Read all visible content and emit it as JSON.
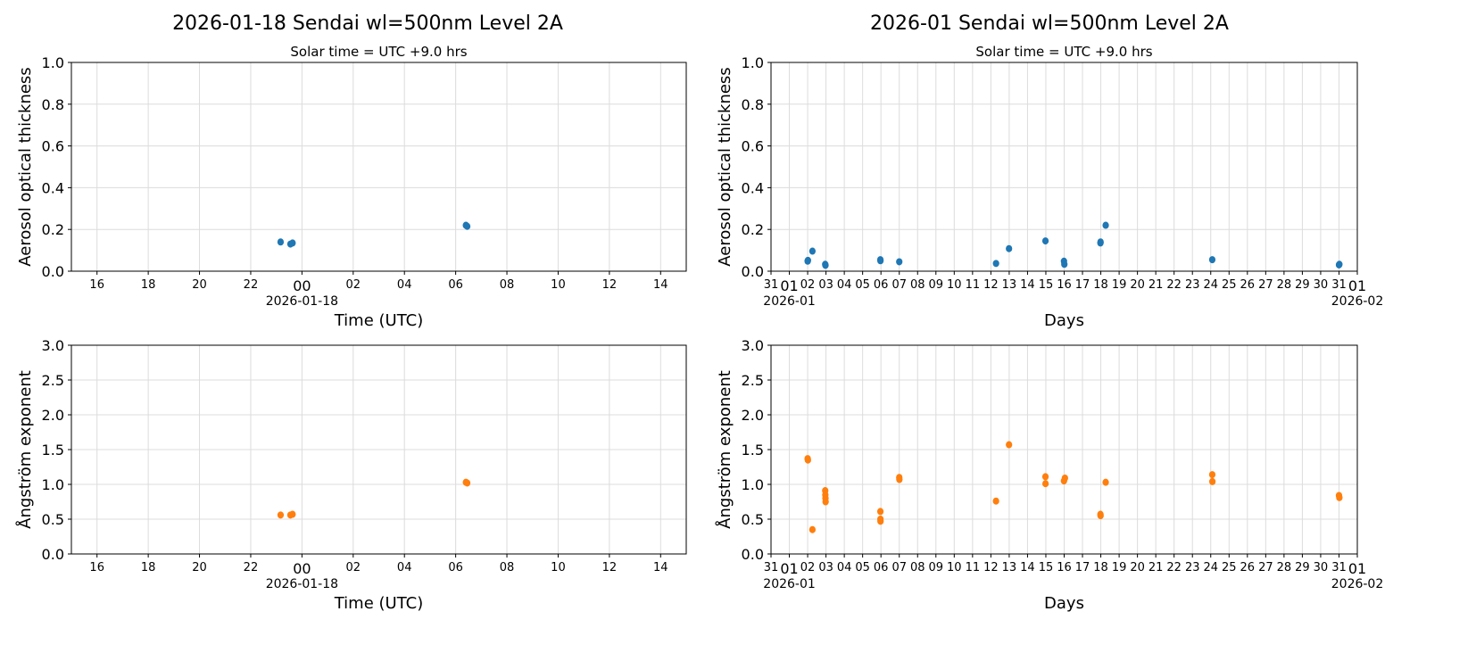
{
  "colors": {
    "aot": "#1f77b4",
    "angstrom": "#ff7f0e",
    "grid": "#dcdcdc"
  },
  "columns": [
    {
      "suptitle": "2026-01-18  Sendai  wl=500nm  Level 2A"
    },
    {
      "suptitle": "2026-01  Sendai  wl=500nm  Level 2A"
    }
  ],
  "chart_data": [
    {
      "type": "scatter",
      "subtitle": "Solar time = UTC +9.0 hrs",
      "xlabel": "Time (UTC)",
      "ylabel": "Aerosol optical thickness",
      "xlim": [
        "2026-01-17T15:00",
        "2026-01-18T15:00"
      ],
      "ylim": [
        0,
        1.0
      ],
      "yticks": [
        "0.0",
        "0.2",
        "0.4",
        "0.6",
        "0.8",
        "1.0"
      ],
      "grid": true,
      "color": "#1f77b4",
      "xticks": [
        {
          "t": "2026-01-17T16:00",
          "label": "16"
        },
        {
          "t": "2026-01-17T18:00",
          "label": "18"
        },
        {
          "t": "2026-01-17T20:00",
          "label": "20"
        },
        {
          "t": "2026-01-17T22:00",
          "label": "22"
        },
        {
          "t": "2026-01-18T00:00",
          "label": "00",
          "sub": "2026-01-18"
        },
        {
          "t": "2026-01-18T02:00",
          "label": "02"
        },
        {
          "t": "2026-01-18T04:00",
          "label": "04"
        },
        {
          "t": "2026-01-18T06:00",
          "label": "06"
        },
        {
          "t": "2026-01-18T08:00",
          "label": "08"
        },
        {
          "t": "2026-01-18T10:00",
          "label": "10"
        },
        {
          "t": "2026-01-18T12:00",
          "label": "12"
        },
        {
          "t": "2026-01-18T14:00",
          "label": "14"
        }
      ],
      "points": [
        [
          "2026-01-17T23:10",
          0.14
        ],
        [
          "2026-01-17T23:33",
          0.13
        ],
        [
          "2026-01-17T23:38",
          0.135
        ],
        [
          "2026-01-18T06:24",
          0.22
        ],
        [
          "2026-01-18T06:27",
          0.215
        ]
      ]
    },
    {
      "type": "scatter",
      "subtitle": "Solar time = UTC +9.0 hrs",
      "xlabel": "Days",
      "ylabel": "Aerosol optical thickness",
      "xlim": [
        "2025-12-31T00:00",
        "2026-02-01T00:00"
      ],
      "ylim": [
        0,
        1.0
      ],
      "yticks": [
        "0.0",
        "0.2",
        "0.4",
        "0.6",
        "0.8",
        "1.0"
      ],
      "grid": true,
      "color": "#1f77b4",
      "xticks": [
        {
          "t": "2025-12-31",
          "label": "31"
        },
        {
          "t": "2026-01-01",
          "label": "01",
          "sub": "2026-01"
        },
        {
          "t": "2026-01-02",
          "label": "02"
        },
        {
          "t": "2026-01-03",
          "label": "03"
        },
        {
          "t": "2026-01-04",
          "label": "04"
        },
        {
          "t": "2026-01-05",
          "label": "05"
        },
        {
          "t": "2026-01-06",
          "label": "06"
        },
        {
          "t": "2026-01-07",
          "label": "07"
        },
        {
          "t": "2026-01-08",
          "label": "08"
        },
        {
          "t": "2026-01-09",
          "label": "09"
        },
        {
          "t": "2026-01-10",
          "label": "10"
        },
        {
          "t": "2026-01-11",
          "label": "11"
        },
        {
          "t": "2026-01-12",
          "label": "12"
        },
        {
          "t": "2026-01-13",
          "label": "13"
        },
        {
          "t": "2026-01-14",
          "label": "14"
        },
        {
          "t": "2026-01-15",
          "label": "15"
        },
        {
          "t": "2026-01-16",
          "label": "16"
        },
        {
          "t": "2026-01-17",
          "label": "17"
        },
        {
          "t": "2026-01-18",
          "label": "18"
        },
        {
          "t": "2026-01-19",
          "label": "19"
        },
        {
          "t": "2026-01-20",
          "label": "20"
        },
        {
          "t": "2026-01-21",
          "label": "21"
        },
        {
          "t": "2026-01-22",
          "label": "22"
        },
        {
          "t": "2026-01-23",
          "label": "23"
        },
        {
          "t": "2026-01-24",
          "label": "24"
        },
        {
          "t": "2026-01-25",
          "label": "25"
        },
        {
          "t": "2026-01-26",
          "label": "26"
        },
        {
          "t": "2026-01-27",
          "label": "27"
        },
        {
          "t": "2026-01-28",
          "label": "28"
        },
        {
          "t": "2026-01-29",
          "label": "29"
        },
        {
          "t": "2026-01-30",
          "label": "30"
        },
        {
          "t": "2026-01-31",
          "label": "31"
        },
        {
          "t": "2026-02-01",
          "label": "01",
          "sub": "2026-02"
        }
      ],
      "points": [
        [
          "2026-01-02T00:00",
          0.048
        ],
        [
          "2026-01-02T00:20",
          0.052
        ],
        [
          "2026-01-02T06:15",
          0.096
        ],
        [
          "2026-01-02T23:00",
          0.033
        ],
        [
          "2026-01-02T23:20",
          0.028
        ],
        [
          "2026-01-05T23:15",
          0.055
        ],
        [
          "2026-01-05T23:20",
          0.05
        ],
        [
          "2026-01-07T00:00",
          0.045
        ],
        [
          "2026-01-12T06:45",
          0.037
        ],
        [
          "2026-01-12T23:45",
          0.108
        ],
        [
          "2026-01-14T23:30",
          0.145
        ],
        [
          "2026-01-15T23:45",
          0.048
        ],
        [
          "2026-01-16T00:15",
          0.033
        ],
        [
          "2026-01-17T23:30",
          0.135
        ],
        [
          "2026-01-17T23:40",
          0.14
        ],
        [
          "2026-01-18T06:25",
          0.22
        ],
        [
          "2026-01-24T02:00",
          0.055
        ],
        [
          "2026-01-31T00:00",
          0.03
        ],
        [
          "2026-01-31T00:30",
          0.033
        ]
      ]
    },
    {
      "type": "scatter",
      "xlabel": "Time (UTC)",
      "ylabel": "Ångström exponent",
      "xlim": [
        "2026-01-17T15:00",
        "2026-01-18T15:00"
      ],
      "ylim": [
        0,
        3.0
      ],
      "yticks": [
        "0.0",
        "0.5",
        "1.0",
        "1.5",
        "2.0",
        "2.5",
        "3.0"
      ],
      "grid": true,
      "color": "#ff7f0e",
      "xticks": [
        {
          "t": "2026-01-17T16:00",
          "label": "16"
        },
        {
          "t": "2026-01-17T18:00",
          "label": "18"
        },
        {
          "t": "2026-01-17T20:00",
          "label": "20"
        },
        {
          "t": "2026-01-17T22:00",
          "label": "22"
        },
        {
          "t": "2026-01-18T00:00",
          "label": "00",
          "sub": "2026-01-18"
        },
        {
          "t": "2026-01-18T02:00",
          "label": "02"
        },
        {
          "t": "2026-01-18T04:00",
          "label": "04"
        },
        {
          "t": "2026-01-18T06:00",
          "label": "06"
        },
        {
          "t": "2026-01-18T08:00",
          "label": "08"
        },
        {
          "t": "2026-01-18T10:00",
          "label": "10"
        },
        {
          "t": "2026-01-18T12:00",
          "label": "12"
        },
        {
          "t": "2026-01-18T14:00",
          "label": "14"
        }
      ],
      "points": [
        [
          "2026-01-17T23:10",
          0.56
        ],
        [
          "2026-01-17T23:33",
          0.56
        ],
        [
          "2026-01-17T23:38",
          0.57
        ],
        [
          "2026-01-18T06:24",
          1.03
        ],
        [
          "2026-01-18T06:27",
          1.02
        ]
      ]
    },
    {
      "type": "scatter",
      "xlabel": "Days",
      "ylabel": "Ångström exponent",
      "xlim": [
        "2025-12-31T00:00",
        "2026-02-01T00:00"
      ],
      "ylim": [
        0,
        3.0
      ],
      "yticks": [
        "0.0",
        "0.5",
        "1.0",
        "1.5",
        "2.0",
        "2.5",
        "3.0"
      ],
      "grid": true,
      "color": "#ff7f0e",
      "xticks": [
        {
          "t": "2025-12-31",
          "label": "31"
        },
        {
          "t": "2026-01-01",
          "label": "01",
          "sub": "2026-01"
        },
        {
          "t": "2026-01-02",
          "label": "02"
        },
        {
          "t": "2026-01-03",
          "label": "03"
        },
        {
          "t": "2026-01-04",
          "label": "04"
        },
        {
          "t": "2026-01-05",
          "label": "05"
        },
        {
          "t": "2026-01-06",
          "label": "06"
        },
        {
          "t": "2026-01-07",
          "label": "07"
        },
        {
          "t": "2026-01-08",
          "label": "08"
        },
        {
          "t": "2026-01-09",
          "label": "09"
        },
        {
          "t": "2026-01-10",
          "label": "10"
        },
        {
          "t": "2026-01-11",
          "label": "11"
        },
        {
          "t": "2026-01-12",
          "label": "12"
        },
        {
          "t": "2026-01-13",
          "label": "13"
        },
        {
          "t": "2026-01-14",
          "label": "14"
        },
        {
          "t": "2026-01-15",
          "label": "15"
        },
        {
          "t": "2026-01-16",
          "label": "16"
        },
        {
          "t": "2026-01-17",
          "label": "17"
        },
        {
          "t": "2026-01-18",
          "label": "18"
        },
        {
          "t": "2026-01-19",
          "label": "19"
        },
        {
          "t": "2026-01-20",
          "label": "20"
        },
        {
          "t": "2026-01-21",
          "label": "21"
        },
        {
          "t": "2026-01-22",
          "label": "22"
        },
        {
          "t": "2026-01-23",
          "label": "23"
        },
        {
          "t": "2026-01-24",
          "label": "24"
        },
        {
          "t": "2026-01-25",
          "label": "25"
        },
        {
          "t": "2026-01-26",
          "label": "26"
        },
        {
          "t": "2026-01-27",
          "label": "27"
        },
        {
          "t": "2026-01-28",
          "label": "28"
        },
        {
          "t": "2026-01-29",
          "label": "29"
        },
        {
          "t": "2026-01-30",
          "label": "30"
        },
        {
          "t": "2026-01-31",
          "label": "31"
        },
        {
          "t": "2026-02-01",
          "label": "01",
          "sub": "2026-02"
        }
      ],
      "points": [
        [
          "2026-01-02T00:00",
          1.37
        ],
        [
          "2026-01-02T00:20",
          1.35
        ],
        [
          "2026-01-02T06:15",
          0.35
        ],
        [
          "2026-01-02T23:00",
          0.91
        ],
        [
          "2026-01-02T23:10",
          0.85
        ],
        [
          "2026-01-02T23:20",
          0.8
        ],
        [
          "2026-01-02T23:30",
          0.75
        ],
        [
          "2026-01-05T23:15",
          0.61
        ],
        [
          "2026-01-05T23:20",
          0.5
        ],
        [
          "2026-01-05T23:25",
          0.47
        ],
        [
          "2026-01-07T00:00",
          1.1
        ],
        [
          "2026-01-07T00:10",
          1.07
        ],
        [
          "2026-01-12T06:45",
          0.76
        ],
        [
          "2026-01-12T23:45",
          1.57
        ],
        [
          "2026-01-14T23:30",
          1.11
        ],
        [
          "2026-01-14T23:35",
          1.01
        ],
        [
          "2026-01-15T23:45",
          1.05
        ],
        [
          "2026-01-16T01:00",
          1.09
        ],
        [
          "2026-01-17T23:30",
          0.57
        ],
        [
          "2026-01-17T23:40",
          0.55
        ],
        [
          "2026-01-18T06:25",
          1.03
        ],
        [
          "2026-01-24T02:00",
          1.14
        ],
        [
          "2026-01-24T02:10",
          1.04
        ],
        [
          "2026-01-31T00:00",
          0.84
        ],
        [
          "2026-01-31T00:30",
          0.81
        ]
      ]
    }
  ]
}
